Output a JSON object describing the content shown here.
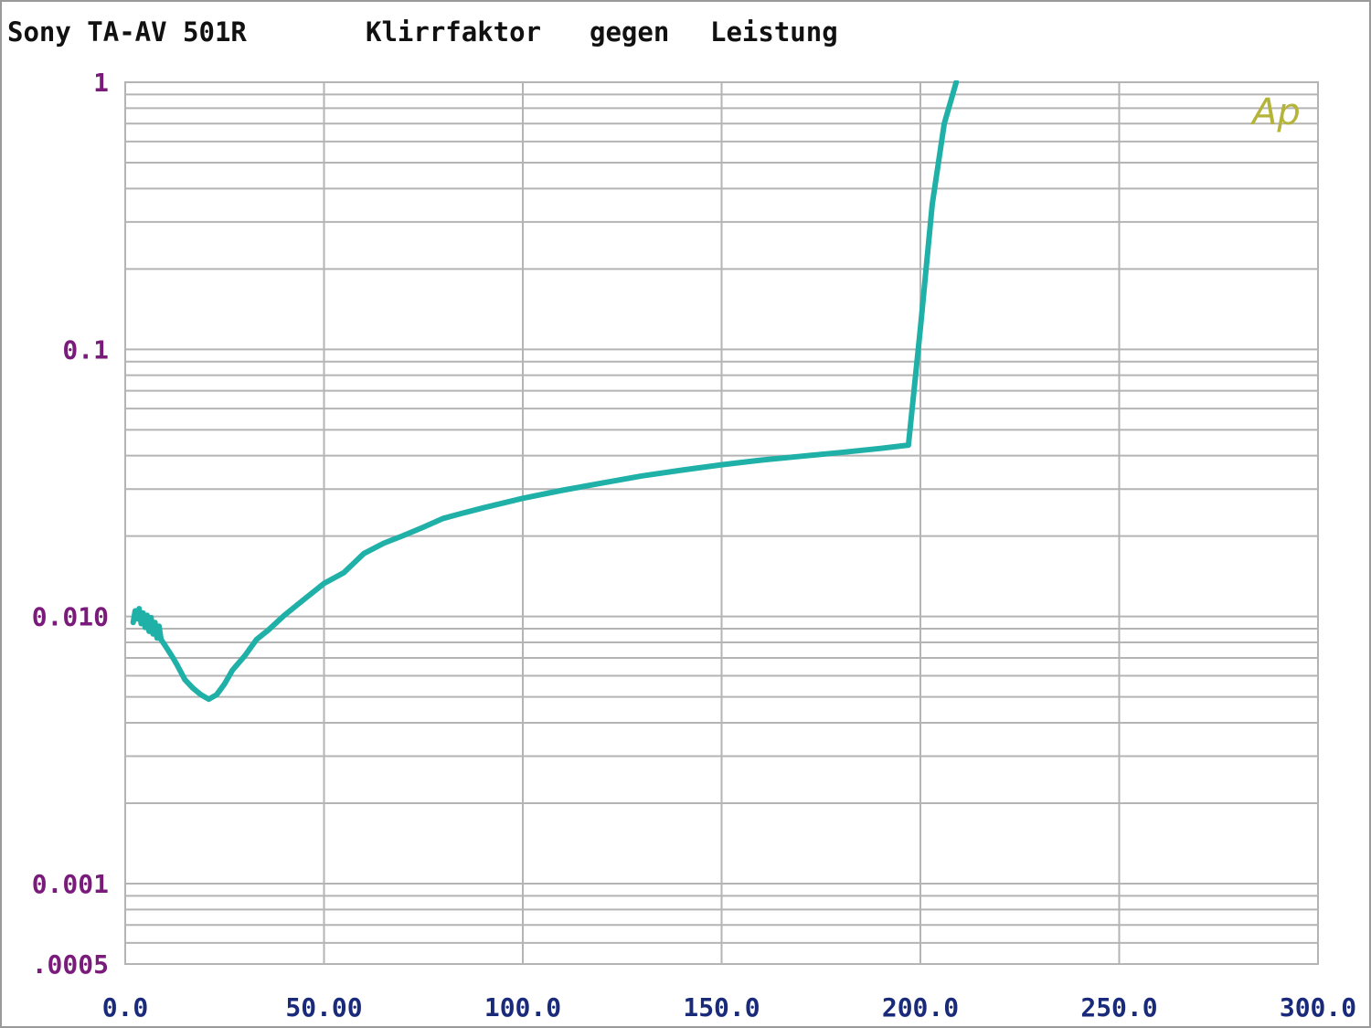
{
  "header": {
    "device": "Sony TA-AV 501R",
    "title_part1": "Klirrfaktor",
    "title_part2": "gegen",
    "title_part3": "Leistung"
  },
  "logo": "Ap",
  "colors": {
    "line": "#1fb0a8",
    "grid": "#b4b4b4",
    "y_ticks": "#7a1a7a",
    "x_ticks": "#1a2a7a",
    "logo": "#b4b43a"
  },
  "chart_data": {
    "type": "line",
    "title": "Klirrfaktor gegen Leistung",
    "xlabel": "",
    "ylabel": "",
    "x_scale": "linear",
    "y_scale": "log",
    "xlim": [
      0,
      300
    ],
    "ylim": [
      0.0005,
      1
    ],
    "grid": true,
    "x_ticks": [
      "0.0",
      "50.00",
      "100.0",
      "150.0",
      "200.0",
      "250.0",
      "300.0"
    ],
    "y_ticks": [
      {
        "value": 1,
        "label": "1"
      },
      {
        "value": 0.1,
        "label": "0.1"
      },
      {
        "value": 0.01,
        "label": "0.010"
      },
      {
        "value": 0.001,
        "label": "0.001"
      },
      {
        "value": 0.0005,
        "label": ".0005"
      }
    ],
    "series": [
      {
        "x": [
          2,
          2.5,
          3,
          3.5,
          4,
          4.5,
          5,
          5.5,
          6,
          6.5,
          7,
          7.5,
          8,
          8.5,
          9,
          10,
          11,
          12,
          13,
          14,
          15,
          17,
          19,
          21,
          23,
          25,
          27,
          30,
          33,
          36,
          40,
          45,
          50,
          55,
          60,
          65,
          70,
          75,
          80,
          85,
          90,
          100,
          110,
          120,
          130,
          140,
          150,
          160,
          170,
          180,
          190,
          197,
          200,
          203,
          206,
          209
        ],
        "y": [
          0.0095,
          0.0105,
          0.0098,
          0.0107,
          0.0094,
          0.0103,
          0.0091,
          0.0101,
          0.0088,
          0.0099,
          0.0086,
          0.0095,
          0.0083,
          0.0092,
          0.0082,
          0.0078,
          0.0074,
          0.007,
          0.0066,
          0.0062,
          0.0058,
          0.0054,
          0.0051,
          0.0049,
          0.0051,
          0.0056,
          0.0063,
          0.0071,
          0.0082,
          0.0089,
          0.0101,
          0.0116,
          0.0133,
          0.0146,
          0.0172,
          0.0188,
          0.0201,
          0.0216,
          0.0233,
          0.0244,
          0.0255,
          0.0277,
          0.0297,
          0.0316,
          0.0336,
          0.0353,
          0.037,
          0.0385,
          0.0398,
          0.0411,
          0.0426,
          0.0438,
          0.12,
          0.35,
          0.7,
          1.0
        ]
      }
    ]
  }
}
